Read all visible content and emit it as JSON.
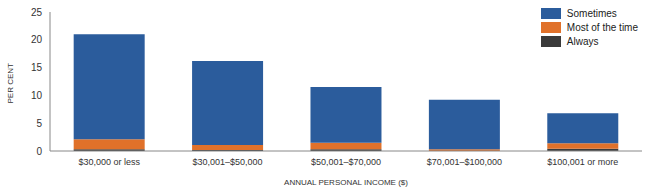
{
  "chart_data": {
    "type": "bar",
    "stacked": true,
    "x_label": "ANNUAL PERSONAL INCOME ($)",
    "y_label": "PER CENT",
    "categories": [
      "$30,000 or less",
      "$30,001–$50,000",
      "$50,001–$70,000",
      "$70,001–$100,000",
      "$100,001 or more"
    ],
    "series": [
      {
        "name": "Sometimes",
        "color": "#2b5c9c",
        "values": [
          18.9,
          15.1,
          10.0,
          8.9,
          5.4
        ]
      },
      {
        "name": "Most of the time",
        "color": "#e0712a",
        "values": [
          1.8,
          0.9,
          1.2,
          0.3,
          1.0
        ]
      },
      {
        "name": "Always",
        "color": "#3a3a3a",
        "values": [
          0.3,
          0.2,
          0.3,
          0,
          0.4
        ]
      }
    ],
    "ylim": [
      0,
      25
    ],
    "yticks": [
      0,
      5,
      10,
      15,
      20,
      25
    ],
    "grid": false,
    "legend": "top-right"
  }
}
